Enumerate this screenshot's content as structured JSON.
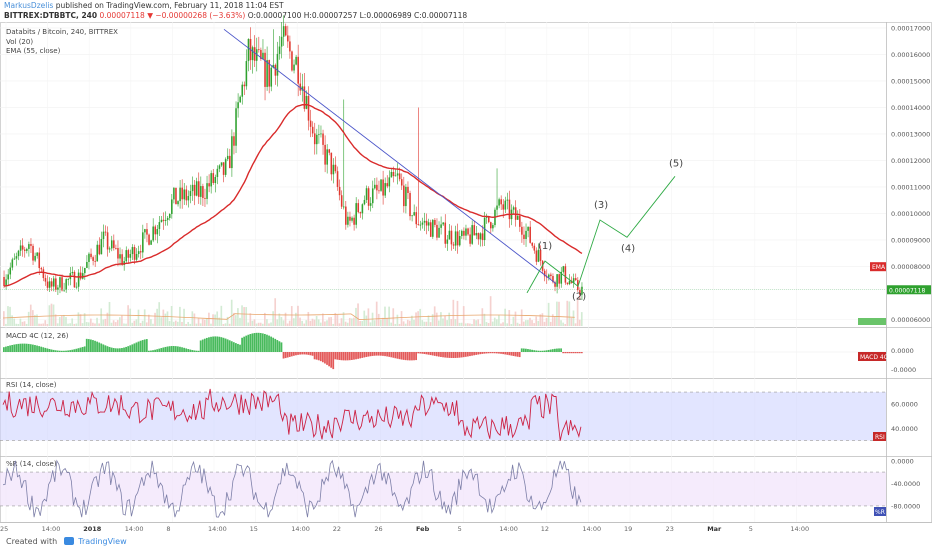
{
  "header": {
    "author": "MarkusDzelis",
    "published": " published on TradingView.com, February 11, 2018 11:04 EST",
    "symbol": "BITTREX:DTBBTC, 240",
    "change": "0.00007118 ▼ −0.00000268 (−3.63%)",
    "ohlc": "O:0.00007100 H:0.00007257 L:0.00006989 C:0.00007118"
  },
  "legend": {
    "title": "Databits / Bitcoin, 240, BITTREX",
    "vol": "Vol (20)",
    "ema": "EMA (55, close)",
    "macd": "MACD 4C (12, 26)",
    "rsi": "RSI (14, close)",
    "wr": "%R (14, close)"
  },
  "footer": {
    "created": "Created with",
    "brand": "TradingView"
  },
  "colors": {
    "up": "#2fa12f",
    "down": "#e0382f",
    "ema": "#d92b2b",
    "trend": "#4b55c9",
    "wave": "#2faa45",
    "rsi": "#cc2244",
    "rsi_band": "#cfd3ff",
    "wr": "#7d7fa8",
    "wr_band": "#f1e2fb"
  },
  "chart_data": [
    {
      "type": "candlestick",
      "title": "Databits / Bitcoin, 240, BITTREX",
      "yticks": [
        "0.00017000",
        "0.00016000",
        "0.00015000",
        "0.00014000",
        "0.00013000",
        "0.00012000",
        "0.00011000",
        "0.00010000",
        "0.00009000",
        "0.00008000",
        "0.00007118",
        "0.00006000"
      ],
      "ylim": [
        5.75e-05,
        0.0001715
      ],
      "xticks": [
        "25",
        "14:00",
        "2018",
        "14:00",
        "8",
        "14:00",
        "15",
        "14:00",
        "22",
        "26",
        "Feb",
        "5",
        "14:00",
        "12",
        "14:00",
        "19",
        "23",
        "Mar",
        "5",
        "14:00"
      ],
      "last_price": 7.118e-05,
      "ema_label": "EMA",
      "ema_approx": [
        [
          "25",
          6.85e-05
        ],
        [
          "2018",
          7.2e-05
        ],
        [
          "8",
          9.8e-05
        ],
        [
          "14:00",
          0.000122
        ],
        [
          "15",
          0.00013
        ],
        [
          "22",
          0.000106
        ],
        [
          "26",
          0.0001
        ],
        [
          "Feb",
          8.7e-05
        ],
        [
          "5",
          8e-05
        ],
        [
          "12",
          7.9e-05
        ]
      ],
      "trendline": {
        "from": 0.0001695,
        "to": 7.35e-05
      },
      "wave_labels": [
        "(1)",
        "(2)",
        "(3)",
        "(4)",
        "(5)"
      ],
      "wave_projection_values": [
        8.2e-05,
        7.25e-05,
        9.75e-05,
        9.1e-05,
        0.000114
      ]
    },
    {
      "type": "bar",
      "title": "MACD 4C (12, 26)",
      "yticks": [
        "0.0000",
        "-0.0000"
      ],
      "label": "MACD 4C"
    },
    {
      "type": "line",
      "title": "RSI (14, close)",
      "yticks": [
        "60.0000",
        "40.0000"
      ],
      "ylim": [
        18,
        80
      ],
      "band": [
        30,
        70
      ],
      "label": "RSI"
    },
    {
      "type": "line",
      "title": "%R (14, close)",
      "yticks": [
        "0.0000",
        "-40.0000",
        "-80.0000"
      ],
      "ylim": [
        -105,
        5
      ],
      "band": [
        -80,
        -20
      ],
      "label": "%R"
    }
  ]
}
